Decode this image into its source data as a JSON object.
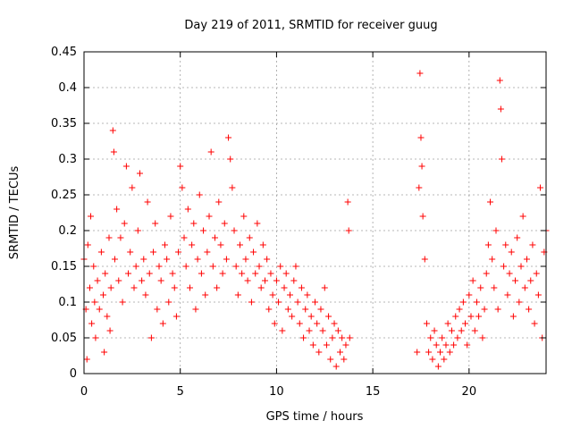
{
  "chart_data": {
    "type": "scatter",
    "title": "Day 219 of 2011, SRMTID for receiver guug",
    "xlabel": "GPS time / hours",
    "ylabel": "SRMTID / TECUs",
    "xlim": [
      0,
      24
    ],
    "ylim": [
      0,
      0.45
    ],
    "xticks": [
      0,
      5,
      10,
      15,
      20
    ],
    "xtick_labels": [
      "0",
      "5",
      "10",
      "15",
      "20"
    ],
    "yticks": [
      0,
      0.05,
      0.1,
      0.15,
      0.2,
      0.25,
      0.3,
      0.35,
      0.4,
      0.45
    ],
    "ytick_labels": [
      "0",
      "0.05",
      "0.1",
      "0.15",
      "0.2",
      "0.25",
      "0.3",
      "0.35",
      "0.4",
      "0.45"
    ],
    "grid": true,
    "marker": "+",
    "color": "#ff0000",
    "series": [
      {
        "name": "SRMTID",
        "points": [
          [
            0.0,
            0.16
          ],
          [
            0.1,
            0.09
          ],
          [
            0.15,
            0.02
          ],
          [
            0.2,
            0.18
          ],
          [
            0.3,
            0.12
          ],
          [
            0.35,
            0.22
          ],
          [
            0.4,
            0.07
          ],
          [
            0.5,
            0.15
          ],
          [
            0.55,
            0.1
          ],
          [
            0.6,
            0.05
          ],
          [
            0.7,
            0.13
          ],
          [
            0.8,
            0.09
          ],
          [
            0.9,
            0.17
          ],
          [
            1.0,
            0.11
          ],
          [
            1.05,
            0.03
          ],
          [
            1.1,
            0.14
          ],
          [
            1.2,
            0.08
          ],
          [
            1.3,
            0.19
          ],
          [
            1.35,
            0.06
          ],
          [
            1.4,
            0.12
          ],
          [
            1.5,
            0.34
          ],
          [
            1.55,
            0.31
          ],
          [
            1.6,
            0.16
          ],
          [
            1.7,
            0.23
          ],
          [
            1.8,
            0.13
          ],
          [
            1.9,
            0.19
          ],
          [
            2.0,
            0.1
          ],
          [
            2.1,
            0.21
          ],
          [
            2.2,
            0.29
          ],
          [
            2.3,
            0.14
          ],
          [
            2.4,
            0.17
          ],
          [
            2.5,
            0.26
          ],
          [
            2.6,
            0.12
          ],
          [
            2.7,
            0.15
          ],
          [
            2.8,
            0.2
          ],
          [
            2.9,
            0.28
          ],
          [
            3.0,
            0.13
          ],
          [
            3.1,
            0.16
          ],
          [
            3.2,
            0.11
          ],
          [
            3.3,
            0.24
          ],
          [
            3.4,
            0.14
          ],
          [
            3.5,
            0.05
          ],
          [
            3.6,
            0.17
          ],
          [
            3.7,
            0.21
          ],
          [
            3.8,
            0.09
          ],
          [
            3.9,
            0.15
          ],
          [
            4.0,
            0.13
          ],
          [
            4.1,
            0.07
          ],
          [
            4.2,
            0.18
          ],
          [
            4.3,
            0.16
          ],
          [
            4.4,
            0.1
          ],
          [
            4.5,
            0.22
          ],
          [
            4.6,
            0.14
          ],
          [
            4.7,
            0.12
          ],
          [
            4.8,
            0.08
          ],
          [
            4.9,
            0.17
          ],
          [
            5.0,
            0.29
          ],
          [
            5.1,
            0.26
          ],
          [
            5.2,
            0.19
          ],
          [
            5.3,
            0.15
          ],
          [
            5.4,
            0.23
          ],
          [
            5.5,
            0.12
          ],
          [
            5.6,
            0.18
          ],
          [
            5.7,
            0.21
          ],
          [
            5.8,
            0.09
          ],
          [
            5.9,
            0.16
          ],
          [
            6.0,
            0.25
          ],
          [
            6.1,
            0.14
          ],
          [
            6.2,
            0.2
          ],
          [
            6.3,
            0.11
          ],
          [
            6.4,
            0.17
          ],
          [
            6.5,
            0.22
          ],
          [
            6.6,
            0.31
          ],
          [
            6.7,
            0.15
          ],
          [
            6.8,
            0.19
          ],
          [
            6.9,
            0.12
          ],
          [
            7.0,
            0.24
          ],
          [
            7.1,
            0.18
          ],
          [
            7.2,
            0.14
          ],
          [
            7.3,
            0.21
          ],
          [
            7.4,
            0.16
          ],
          [
            7.5,
            0.33
          ],
          [
            7.6,
            0.3
          ],
          [
            7.7,
            0.26
          ],
          [
            7.8,
            0.2
          ],
          [
            7.9,
            0.15
          ],
          [
            8.0,
            0.11
          ],
          [
            8.1,
            0.18
          ],
          [
            8.2,
            0.14
          ],
          [
            8.3,
            0.22
          ],
          [
            8.4,
            0.16
          ],
          [
            8.5,
            0.13
          ],
          [
            8.6,
            0.19
          ],
          [
            8.7,
            0.1
          ],
          [
            8.8,
            0.17
          ],
          [
            8.9,
            0.14
          ],
          [
            9.0,
            0.21
          ],
          [
            9.1,
            0.15
          ],
          [
            9.2,
            0.12
          ],
          [
            9.3,
            0.18
          ],
          [
            9.4,
            0.13
          ],
          [
            9.5,
            0.16
          ],
          [
            9.6,
            0.09
          ],
          [
            9.7,
            0.14
          ],
          [
            9.8,
            0.11
          ],
          [
            9.9,
            0.07
          ],
          [
            10.0,
            0.13
          ],
          [
            10.1,
            0.1
          ],
          [
            10.2,
            0.15
          ],
          [
            10.3,
            0.06
          ],
          [
            10.4,
            0.12
          ],
          [
            10.5,
            0.14
          ],
          [
            10.6,
            0.09
          ],
          [
            10.7,
            0.11
          ],
          [
            10.8,
            0.08
          ],
          [
            10.9,
            0.13
          ],
          [
            11.0,
            0.15
          ],
          [
            11.1,
            0.1
          ],
          [
            11.2,
            0.07
          ],
          [
            11.3,
            0.12
          ],
          [
            11.4,
            0.05
          ],
          [
            11.5,
            0.09
          ],
          [
            11.6,
            0.11
          ],
          [
            11.7,
            0.06
          ],
          [
            11.8,
            0.08
          ],
          [
            11.9,
            0.04
          ],
          [
            12.0,
            0.1
          ],
          [
            12.1,
            0.07
          ],
          [
            12.2,
            0.03
          ],
          [
            12.3,
            0.09
          ],
          [
            12.4,
            0.06
          ],
          [
            12.5,
            0.12
          ],
          [
            12.6,
            0.04
          ],
          [
            12.7,
            0.08
          ],
          [
            12.8,
            0.02
          ],
          [
            12.9,
            0.05
          ],
          [
            13.0,
            0.07
          ],
          [
            13.1,
            0.01
          ],
          [
            13.2,
            0.06
          ],
          [
            13.3,
            0.03
          ],
          [
            13.4,
            0.05
          ],
          [
            13.5,
            0.02
          ],
          [
            13.6,
            0.04
          ],
          [
            13.7,
            0.24
          ],
          [
            13.75,
            0.2
          ],
          [
            13.8,
            0.05
          ],
          [
            17.3,
            0.03
          ],
          [
            17.4,
            0.26
          ],
          [
            17.45,
            0.42
          ],
          [
            17.5,
            0.33
          ],
          [
            17.55,
            0.29
          ],
          [
            17.6,
            0.22
          ],
          [
            17.7,
            0.16
          ],
          [
            17.8,
            0.07
          ],
          [
            17.9,
            0.03
          ],
          [
            18.0,
            0.05
          ],
          [
            18.1,
            0.02
          ],
          [
            18.2,
            0.06
          ],
          [
            18.3,
            0.04
          ],
          [
            18.4,
            0.01
          ],
          [
            18.5,
            0.03
          ],
          [
            18.6,
            0.05
          ],
          [
            18.7,
            0.02
          ],
          [
            18.8,
            0.04
          ],
          [
            18.9,
            0.07
          ],
          [
            19.0,
            0.03
          ],
          [
            19.1,
            0.06
          ],
          [
            19.2,
            0.04
          ],
          [
            19.3,
            0.08
          ],
          [
            19.4,
            0.05
          ],
          [
            19.5,
            0.09
          ],
          [
            19.6,
            0.06
          ],
          [
            19.7,
            0.1
          ],
          [
            19.8,
            0.07
          ],
          [
            19.9,
            0.04
          ],
          [
            20.0,
            0.11
          ],
          [
            20.1,
            0.08
          ],
          [
            20.2,
            0.13
          ],
          [
            20.3,
            0.06
          ],
          [
            20.4,
            0.1
          ],
          [
            20.5,
            0.08
          ],
          [
            20.6,
            0.12
          ],
          [
            20.7,
            0.05
          ],
          [
            20.8,
            0.09
          ],
          [
            20.9,
            0.14
          ],
          [
            21.0,
            0.18
          ],
          [
            21.1,
            0.24
          ],
          [
            21.2,
            0.16
          ],
          [
            21.3,
            0.12
          ],
          [
            21.4,
            0.2
          ],
          [
            21.5,
            0.09
          ],
          [
            21.6,
            0.41
          ],
          [
            21.65,
            0.37
          ],
          [
            21.7,
            0.3
          ],
          [
            21.8,
            0.15
          ],
          [
            21.9,
            0.18
          ],
          [
            22.0,
            0.11
          ],
          [
            22.1,
            0.14
          ],
          [
            22.2,
            0.17
          ],
          [
            22.3,
            0.08
          ],
          [
            22.4,
            0.13
          ],
          [
            22.5,
            0.19
          ],
          [
            22.6,
            0.1
          ],
          [
            22.7,
            0.15
          ],
          [
            22.8,
            0.22
          ],
          [
            22.9,
            0.12
          ],
          [
            23.0,
            0.16
          ],
          [
            23.1,
            0.09
          ],
          [
            23.2,
            0.13
          ],
          [
            23.3,
            0.18
          ],
          [
            23.4,
            0.07
          ],
          [
            23.5,
            0.14
          ],
          [
            23.6,
            0.11
          ],
          [
            23.7,
            0.26
          ],
          [
            23.8,
            0.05
          ],
          [
            23.9,
            0.17
          ],
          [
            24.0,
            0.2
          ]
        ]
      }
    ]
  }
}
